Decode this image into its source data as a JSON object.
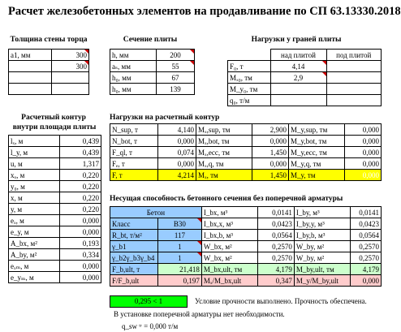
{
  "title": "Расчет железобетонных элементов на продавливание по СП 63.13330.2018",
  "wall": {
    "header": "Толщина стены торца",
    "rows": [
      {
        "label": "a1, мм",
        "value": "300"
      },
      {
        "label": "",
        "value": "300"
      },
      {
        "label": "",
        "value": ""
      },
      {
        "label": "",
        "value": ""
      }
    ]
  },
  "slab": {
    "header": "Сечение плиты",
    "rows": [
      {
        "label": "h, мм",
        "value": "200"
      },
      {
        "label": "aₛ, мм",
        "value": "55"
      },
      {
        "label": "h₀, мм",
        "value": "67"
      },
      {
        "label": "h₀, мм",
        "value": "139"
      }
    ]
  },
  "edge_loads": {
    "header": "Нагрузки у граней плиты",
    "col_above": "над плитой",
    "col_below": "под плитой",
    "rows": [
      {
        "label": "F₀, т",
        "above": "4,14",
        "below": ""
      },
      {
        "label": "Mₓ₀, тм",
        "above": "2,9",
        "below": ""
      },
      {
        "label": "M_y₀, тм",
        "above": "",
        "below": ""
      },
      {
        "label": "q₀, т/м",
        "above": "",
        "below": ""
      }
    ]
  },
  "contour": {
    "header1": "Расчетный контур",
    "header2": "внутри площади плиты",
    "rows": [
      {
        "label": "lₓ, м",
        "value": "0,439"
      },
      {
        "label": "l_y, м",
        "value": "0,439"
      },
      {
        "label": "u, м",
        "value": "1,317"
      },
      {
        "label": "xₒ, м",
        "value": "0,220"
      },
      {
        "label": "y₀, м",
        "value": "0,220"
      },
      {
        "label": "x, м",
        "value": "0,220"
      },
      {
        "label": "y, м",
        "value": "0,220"
      },
      {
        "label": "eₓ, м",
        "value": "0,000"
      },
      {
        "label": "e_y, м",
        "value": "0,000"
      },
      {
        "label": "A_bx, м²",
        "value": "0,193"
      },
      {
        "label": "A_by, м²",
        "value": "0,334"
      },
      {
        "label": "eₓₘ, м",
        "value": "0,000"
      },
      {
        "label": "e_yₘ, м",
        "value": "0,000"
      }
    ]
  },
  "contour_loads": {
    "header": "Нагрузки на расчетный контур",
    "rows": [
      {
        "l1": "N_sup, т",
        "v1": "4,140",
        "l2": "Mₓ,sup, тм",
        "v2": "2,900",
        "l3": "M_y,sup, тм",
        "v3": "0,000"
      },
      {
        "l1": "N_bot, т",
        "v1": "0,000",
        "l2": "Mₓ,bot, тм",
        "v2": "0,000",
        "l3": "M_y,bot, тм",
        "v3": "0,000"
      },
      {
        "l1": "F_ql, т",
        "v1": "0,074",
        "l2": "Mₓ,ecc, тм",
        "v2": "1,450",
        "l3": "M_y,ecc, тм",
        "v3": "0,000"
      },
      {
        "l1": "Fₑ, т",
        "v1": "0,000",
        "l2": "Mₓ,q, тм",
        "v2": "0,000",
        "l3": "M_y,q, тм",
        "v3": "0,000"
      },
      {
        "l1": "F, т",
        "v1": "4,214",
        "l2": "Mₓ, тм",
        "v2": "1,450",
        "l3": "M_y, тм",
        "v3": "0,000"
      }
    ]
  },
  "capacity": {
    "header": "Несущая способность бетонного сечения без поперечной арматуры",
    "beton_label": "Бетон",
    "rows": [
      {
        "l1": "Класс",
        "v1": "B30",
        "l2": "I_bx, м³",
        "v2": "0,0141",
        "l3": "I_by, м³",
        "v3": "0,0141"
      },
      {
        "l1": "R_bt, т/м²",
        "v1": "117",
        "l2": "I_bx,x, м³",
        "v2": "0,0423",
        "l3": "I_by,y, м³",
        "v3": "0,0423"
      },
      {
        "l1": "γ_b1",
        "v1": "1",
        "l2": "I_bx,b, м³",
        "v2": "0,0564",
        "l3": "I_by,b, м³",
        "v3": "0,0564"
      },
      {
        "l1": "γ_b2γ_b3γ_b4",
        "v1": "1",
        "l2": "W_bx, м²",
        "v2": "0,2570",
        "l3": "W_by, м²",
        "v3": "0,2570"
      },
      {
        "l1": "",
        "v1": "",
        "l2": "W_bx, м²",
        "v2": "0,2570",
        "l3": "W_by, м²",
        "v3": "0,2570"
      }
    ],
    "ult": {
      "l1": "F_b,ult, т",
      "v1": "21,418",
      "l2": "M_bx,ult, тм",
      "v2": "4,179",
      "l3": "M_by,ult, тм",
      "v3": "4,179"
    },
    "ratio": {
      "l1": "F/F_b,ult",
      "v1": "0,197",
      "l2": "Mₓ/M_bx,ult",
      "v2": "0,347",
      "l3": "M_y/M_by,ult",
      "v3": "0,000"
    }
  },
  "result": {
    "check_value": "0,295  < 1",
    "strength_msg": "Условие прочности выполнено. Прочность обеспечена.",
    "rebar_msg": "В установке поперечной арматуры нет необходимости.",
    "q_sw": "q_sw ᵗʳ =  0,000 т/м"
  }
}
